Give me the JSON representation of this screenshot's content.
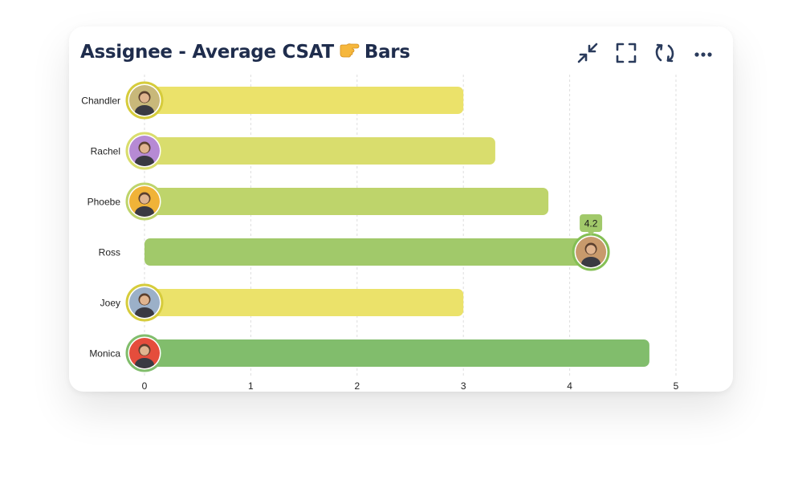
{
  "title": "Assignee - Average CSAT",
  "title_suffix": "Bars",
  "toolbar": [
    {
      "name": "collapse-icon"
    },
    {
      "name": "fullscreen-icon"
    },
    {
      "name": "refresh-icon"
    },
    {
      "name": "more-icon"
    }
  ],
  "colors": {
    "title": "#1f2d4d",
    "icon": "#2a3b5c",
    "grid": "#dedede"
  },
  "chart_data": {
    "type": "bar",
    "orientation": "horizontal",
    "categories": [
      "Chandler",
      "Rachel",
      "Phoebe",
      "Ross",
      "Joey",
      "Monica"
    ],
    "values": [
      3.0,
      3.3,
      3.8,
      4.2,
      3.0,
      4.75
    ],
    "bar_colors": [
      "#ebe26a",
      "#d9dd6d",
      "#bed46b",
      "#a1c96a",
      "#ebe26a",
      "#81bd6c"
    ],
    "avatar_colors": [
      "#c8b87a",
      "#b68ad4",
      "#f0b338",
      "#c89a6c",
      "#9bb0c8",
      "#e54d3c"
    ],
    "xlim": [
      0,
      5
    ],
    "xticks": [
      "0",
      "1",
      "2",
      "3",
      "4",
      "5"
    ],
    "xlabel": "",
    "ylabel": "",
    "grid": true,
    "annotation": {
      "category": "Ross",
      "label": "4.2"
    }
  }
}
